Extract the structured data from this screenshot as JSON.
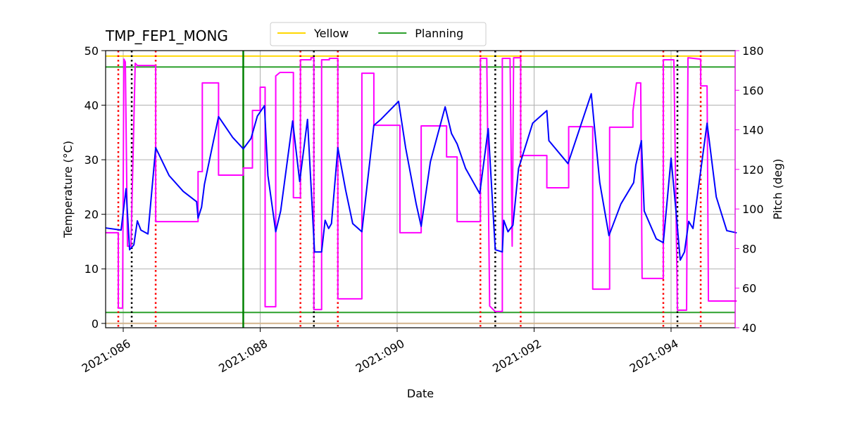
{
  "chart_data": {
    "type": "line",
    "title": "TMP_FEP1_MONG",
    "xlabel": "Date",
    "ylabel": "Temperature (°C)",
    "y2label": "Pitch (deg)",
    "y2color": "#ff00ff",
    "grid": true,
    "legend": "top center",
    "xlim": [
      85.743,
      94.936
    ],
    "ylim": [
      -0.8,
      50
    ],
    "y2lim": [
      40,
      180
    ],
    "xticks": [
      {
        "value": 86,
        "label": "2021:086"
      },
      {
        "value": 88,
        "label": "2021:088"
      },
      {
        "value": 90,
        "label": "2021:090"
      },
      {
        "value": 92,
        "label": "2021:092"
      },
      {
        "value": 94,
        "label": "2021:094"
      }
    ],
    "yticks": [
      0,
      10,
      20,
      30,
      40,
      50
    ],
    "y2ticks": [
      40,
      60,
      80,
      100,
      120,
      140,
      160,
      180
    ],
    "hlines": [
      {
        "name": "Yellow",
        "color": "#ffd700",
        "values": [
          49
        ]
      },
      {
        "name": "Planning",
        "color": "#2ca02c",
        "values": [
          47,
          2
        ]
      },
      {
        "color": "#d2b48c",
        "values": [
          0
        ]
      }
    ],
    "vlines": [
      {
        "color": "#ff0000",
        "style": "dotted",
        "x": [
          85.928,
          86.474,
          88.588,
          89.134,
          91.216,
          91.804,
          93.887,
          94.433
        ]
      },
      {
        "color": "#000000",
        "style": "dotted",
        "x": [
          86.124,
          88.784,
          91.433,
          94.093
        ]
      },
      {
        "color": "#008000",
        "style": "solid",
        "x": [
          87.753
        ]
      }
    ],
    "series": [
      {
        "color": "#ff00ff",
        "axis": "y2",
        "x": [
          85.742,
          85.928,
          85.928,
          85.99,
          86.01,
          86.031,
          86.062,
          86.113,
          86.175,
          86.206,
          86.474,
          86.474,
          87.093,
          87.093,
          87.155,
          87.155,
          87.392,
          87.392,
          87.753,
          87.753,
          87.887,
          87.887,
          88.0,
          88.0,
          88.072,
          88.072,
          88.227,
          88.227,
          88.289,
          88.485,
          88.485,
          88.588,
          88.588,
          88.742,
          88.742,
          88.784,
          88.784,
          88.897,
          88.897,
          89.01,
          89.01,
          89.134,
          89.134,
          89.485,
          89.485,
          89.66,
          89.66,
          90.041,
          90.041,
          90.351,
          90.351,
          90.722,
          90.722,
          90.876,
          90.876,
          91.216,
          91.216,
          91.309,
          91.351,
          91.433,
          91.536,
          91.536,
          91.649,
          91.68,
          91.701,
          91.804,
          91.804,
          92.186,
          92.186,
          92.505,
          92.505,
          92.856,
          92.856,
          93.103,
          93.103,
          93.443,
          93.443,
          93.495,
          93.557,
          93.577,
          93.887,
          93.887,
          94.041,
          94.093,
          94.227,
          94.247,
          94.433,
          94.433,
          94.526,
          94.546,
          94.959
        ],
        "values": [
          88.0,
          88.0,
          49.9,
          49.9,
          175.7,
          174.3,
          81.2,
          81.2,
          173.6,
          172.5,
          172.5,
          93.6,
          93.6,
          118.9,
          118.9,
          163.7,
          163.7,
          117.1,
          117.1,
          120.7,
          120.7,
          149.8,
          149.8,
          161.5,
          161.5,
          50.6,
          50.6,
          167.2,
          169.0,
          169.0,
          105.7,
          105.7,
          175.4,
          175.4,
          176.4,
          176.4,
          49.2,
          49.2,
          175.4,
          175.4,
          176.1,
          176.1,
          54.6,
          54.6,
          168.6,
          168.6,
          142.3,
          142.3,
          88.0,
          88.0,
          142.0,
          142.0,
          126.3,
          126.3,
          93.6,
          93.6,
          176.1,
          176.1,
          51.0,
          48.2,
          48.2,
          176.1,
          176.1,
          81.2,
          176.4,
          176.4,
          127.0,
          127.0,
          110.7,
          110.7,
          141.6,
          141.6,
          59.5,
          59.5,
          141.3,
          141.3,
          149.4,
          163.7,
          163.7,
          64.9,
          64.9,
          175.4,
          175.4,
          48.9,
          48.9,
          176.4,
          175.7,
          162.2,
          162.2,
          53.5,
          53.5
        ]
      },
      {
        "color": "#0000ff",
        "x": [
          85.742,
          85.969,
          86.041,
          86.093,
          86.155,
          86.206,
          86.258,
          86.361,
          86.474,
          86.67,
          86.876,
          87.072,
          87.093,
          87.144,
          87.186,
          87.392,
          87.598,
          87.753,
          87.866,
          87.959,
          88.062,
          88.113,
          88.227,
          88.299,
          88.474,
          88.577,
          88.691,
          88.794,
          88.897,
          88.948,
          89.0,
          89.041,
          89.134,
          89.247,
          89.351,
          89.485,
          89.66,
          89.763,
          90.021,
          90.124,
          90.278,
          90.351,
          90.485,
          90.701,
          90.794,
          90.876,
          91.0,
          91.206,
          91.33,
          91.433,
          91.536,
          91.557,
          91.619,
          91.691,
          91.773,
          91.979,
          92.186,
          92.216,
          92.495,
          92.835,
          92.959,
          93.093,
          93.268,
          93.454,
          93.485,
          93.567,
          93.608,
          93.784,
          93.887,
          94.0,
          94.072,
          94.134,
          94.196,
          94.258,
          94.32,
          94.526,
          94.66,
          94.814,
          94.959
        ],
        "values": [
          17.5,
          17.1,
          24.7,
          13.5,
          14.4,
          18.8,
          17.1,
          16.4,
          32.2,
          27.1,
          24.2,
          22.3,
          19.3,
          21.3,
          25.5,
          37.9,
          34.1,
          32.0,
          33.9,
          38.0,
          39.9,
          27.1,
          16.8,
          20.6,
          37.1,
          26.0,
          37.4,
          13.1,
          13.1,
          18.9,
          17.4,
          18.3,
          32.2,
          24.5,
          18.3,
          16.8,
          36.3,
          37.4,
          40.7,
          32.2,
          21.9,
          17.8,
          29.6,
          39.7,
          34.8,
          32.9,
          28.4,
          23.8,
          35.7,
          13.5,
          13.1,
          18.9,
          16.8,
          18.0,
          28.4,
          36.7,
          39.0,
          33.5,
          29.3,
          42.1,
          25.8,
          16.1,
          21.9,
          25.8,
          29.0,
          33.5,
          20.6,
          15.5,
          14.8,
          30.3,
          20.6,
          11.6,
          13.1,
          18.7,
          17.4,
          36.7,
          23.2,
          17.0,
          16.6
        ]
      }
    ]
  }
}
